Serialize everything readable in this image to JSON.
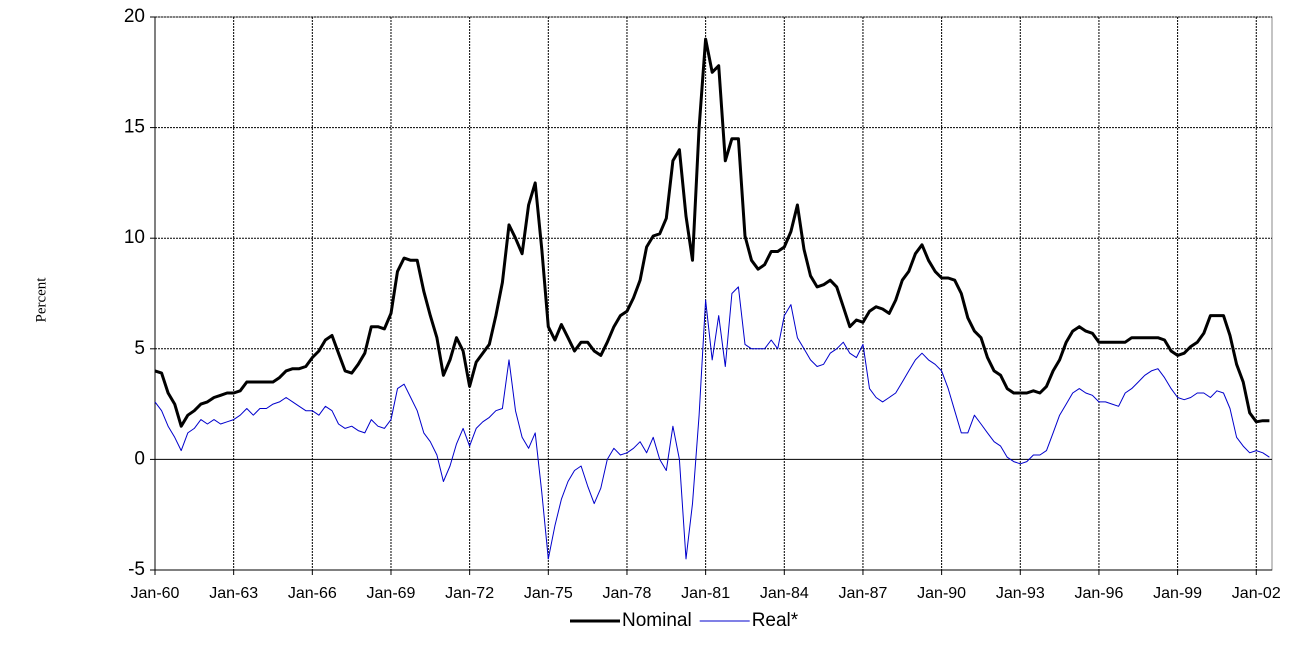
{
  "chart_data": {
    "type": "line",
    "y_label": "Percent",
    "x": [
      1960,
      1960.25,
      1960.5,
      1960.75,
      1961,
      1961.25,
      1961.5,
      1961.75,
      1962,
      1962.25,
      1962.5,
      1962.75,
      1963,
      1963.25,
      1963.5,
      1963.75,
      1964,
      1964.25,
      1964.5,
      1964.75,
      1965,
      1965.25,
      1965.5,
      1965.75,
      1966,
      1966.25,
      1966.5,
      1966.75,
      1967,
      1967.25,
      1967.5,
      1967.75,
      1968,
      1968.25,
      1968.5,
      1968.75,
      1969,
      1969.25,
      1969.5,
      1969.75,
      1970,
      1970.25,
      1970.5,
      1970.75,
      1971,
      1971.25,
      1971.5,
      1971.75,
      1972,
      1972.25,
      1972.5,
      1972.75,
      1973,
      1973.25,
      1973.5,
      1973.75,
      1974,
      1974.25,
      1974.5,
      1974.75,
      1975,
      1975.25,
      1975.5,
      1975.75,
      1976,
      1976.25,
      1976.5,
      1976.75,
      1977,
      1977.25,
      1977.5,
      1977.75,
      1978,
      1978.25,
      1978.5,
      1978.75,
      1979,
      1979.25,
      1979.5,
      1979.75,
      1980,
      1980.25,
      1980.5,
      1980.75,
      1981,
      1981.25,
      1981.5,
      1981.75,
      1982,
      1982.25,
      1982.5,
      1982.75,
      1983,
      1983.25,
      1983.5,
      1983.75,
      1984,
      1984.25,
      1984.5,
      1984.75,
      1985,
      1985.25,
      1985.5,
      1985.75,
      1986,
      1986.25,
      1986.5,
      1986.75,
      1987,
      1987.25,
      1987.5,
      1987.75,
      1988,
      1988.25,
      1988.5,
      1988.75,
      1989,
      1989.25,
      1989.5,
      1989.75,
      1990,
      1990.25,
      1990.5,
      1990.75,
      1991,
      1991.25,
      1991.5,
      1991.75,
      1992,
      1992.25,
      1992.5,
      1992.75,
      1993,
      1993.25,
      1993.5,
      1993.75,
      1994,
      1994.25,
      1994.5,
      1994.75,
      1995,
      1995.25,
      1995.5,
      1995.75,
      1996,
      1996.25,
      1996.5,
      1996.75,
      1997,
      1997.25,
      1997.5,
      1997.75,
      1998,
      1998.25,
      1998.5,
      1998.75,
      1999,
      1999.25,
      1999.5,
      1999.75,
      2000,
      2000.25,
      2000.5,
      2000.75,
      2001,
      2001.25,
      2001.5,
      2001.75,
      2002,
      2002.25,
      2002.5
    ],
    "series": [
      {
        "name": "Nominal",
        "color": "#000000",
        "width": 3,
        "values": [
          4.0,
          3.9,
          3.0,
          2.5,
          1.5,
          2.0,
          2.2,
          2.5,
          2.6,
          2.8,
          2.9,
          3.0,
          3.0,
          3.1,
          3.5,
          3.5,
          3.5,
          3.5,
          3.5,
          3.7,
          4.0,
          4.1,
          4.1,
          4.2,
          4.6,
          4.9,
          5.4,
          5.6,
          4.8,
          4.0,
          3.9,
          4.3,
          4.8,
          6.0,
          6.0,
          5.9,
          6.6,
          8.5,
          9.1,
          9.0,
          9.0,
          7.6,
          6.5,
          5.5,
          3.8,
          4.5,
          5.5,
          4.9,
          3.3,
          4.4,
          4.8,
          5.2,
          6.5,
          8.0,
          10.6,
          10.0,
          9.3,
          11.5,
          12.5,
          9.5,
          6.0,
          5.4,
          6.1,
          5.5,
          4.9,
          5.3,
          5.3,
          4.9,
          4.7,
          5.3,
          6.0,
          6.5,
          6.7,
          7.3,
          8.1,
          9.6,
          10.1,
          10.2,
          10.9,
          13.5,
          14.0,
          11.0,
          9.0,
          15.0,
          19.0,
          17.5,
          17.8,
          13.5,
          14.5,
          14.5,
          10.1,
          9.0,
          8.6,
          8.8,
          9.4,
          9.4,
          9.6,
          10.3,
          11.5,
          9.5,
          8.3,
          7.8,
          7.9,
          8.1,
          7.8,
          6.9,
          6.0,
          6.3,
          6.2,
          6.7,
          6.9,
          6.8,
          6.6,
          7.2,
          8.1,
          8.5,
          9.3,
          9.7,
          9.0,
          8.5,
          8.2,
          8.2,
          8.1,
          7.5,
          6.4,
          5.8,
          5.5,
          4.6,
          4.0,
          3.8,
          3.2,
          3.0,
          3.0,
          3.0,
          3.1,
          3.0,
          3.3,
          4.0,
          4.5,
          5.3,
          5.8,
          6.0,
          5.8,
          5.7,
          5.3,
          5.3,
          5.3,
          5.3,
          5.3,
          5.5,
          5.5,
          5.5,
          5.5,
          5.5,
          5.4,
          4.9,
          4.7,
          4.8,
          5.1,
          5.3,
          5.7,
          6.5,
          6.5,
          6.5,
          5.6,
          4.3,
          3.5,
          2.1,
          1.7,
          1.75,
          1.75
        ]
      },
      {
        "name": "Real*",
        "color": "#0000cc",
        "width": 1,
        "values": [
          2.6,
          2.2,
          1.5,
          1.0,
          0.4,
          1.2,
          1.4,
          1.8,
          1.6,
          1.8,
          1.6,
          1.7,
          1.8,
          2.0,
          2.3,
          2.0,
          2.3,
          2.3,
          2.5,
          2.6,
          2.8,
          2.6,
          2.4,
          2.2,
          2.2,
          2.0,
          2.4,
          2.2,
          1.6,
          1.4,
          1.5,
          1.3,
          1.2,
          1.8,
          1.5,
          1.4,
          1.8,
          3.2,
          3.4,
          2.8,
          2.2,
          1.2,
          0.8,
          0.2,
          -1.0,
          -0.3,
          0.7,
          1.4,
          0.6,
          1.4,
          1.7,
          1.9,
          2.2,
          2.3,
          4.5,
          2.2,
          1.0,
          0.5,
          1.2,
          -1.5,
          -4.5,
          -3.0,
          -1.8,
          -1.0,
          -0.5,
          -0.3,
          -1.2,
          -2.0,
          -1.3,
          0.0,
          0.5,
          0.2,
          0.3,
          0.5,
          0.8,
          0.3,
          1.0,
          0.0,
          -0.5,
          1.5,
          0.0,
          -4.5,
          -2.0,
          2.0,
          7.2,
          4.5,
          6.5,
          4.2,
          7.5,
          7.8,
          5.2,
          5.0,
          5.0,
          5.0,
          5.4,
          5.0,
          6.5,
          7.0,
          5.5,
          5.0,
          4.5,
          4.2,
          4.3,
          4.8,
          5.0,
          5.3,
          4.8,
          4.6,
          5.2,
          3.2,
          2.8,
          2.6,
          2.8,
          3.0,
          3.5,
          4.0,
          4.5,
          4.8,
          4.5,
          4.3,
          4.0,
          3.2,
          2.2,
          1.2,
          1.2,
          2.0,
          1.6,
          1.2,
          0.8,
          0.6,
          0.1,
          -0.1,
          -0.2,
          -0.1,
          0.2,
          0.2,
          0.4,
          1.2,
          2.0,
          2.5,
          3.0,
          3.2,
          3.0,
          2.9,
          2.6,
          2.6,
          2.5,
          2.4,
          3.0,
          3.2,
          3.5,
          3.8,
          4.0,
          4.1,
          3.7,
          3.2,
          2.8,
          2.7,
          2.8,
          3.0,
          3.0,
          2.8,
          3.1,
          3.0,
          2.3,
          1.0,
          0.6,
          0.3,
          0.4,
          0.3,
          0.1
        ]
      }
    ],
    "xlim": [
      1960,
      2002.6
    ],
    "xticks": [
      {
        "value": 1960,
        "label": "Jan-60"
      },
      {
        "value": 1963,
        "label": "Jan-63"
      },
      {
        "value": 1966,
        "label": "Jan-66"
      },
      {
        "value": 1969,
        "label": "Jan-69"
      },
      {
        "value": 1972,
        "label": "Jan-72"
      },
      {
        "value": 1975,
        "label": "Jan-75"
      },
      {
        "value": 1978,
        "label": "Jan-78"
      },
      {
        "value": 1981,
        "label": "Jan-81"
      },
      {
        "value": 1984,
        "label": "Jan-84"
      },
      {
        "value": 1987,
        "label": "Jan-87"
      },
      {
        "value": 1990,
        "label": "Jan-90"
      },
      {
        "value": 1993,
        "label": "Jan-93"
      },
      {
        "value": 1996,
        "label": "Jan-96"
      },
      {
        "value": 1999,
        "label": "Jan-99"
      },
      {
        "value": 2002,
        "label": "Jan-02"
      }
    ],
    "ylim": [
      -5,
      20
    ],
    "yticks": [
      -5,
      0,
      5,
      10,
      15,
      20
    ],
    "grid": true,
    "legend": "bottom"
  }
}
